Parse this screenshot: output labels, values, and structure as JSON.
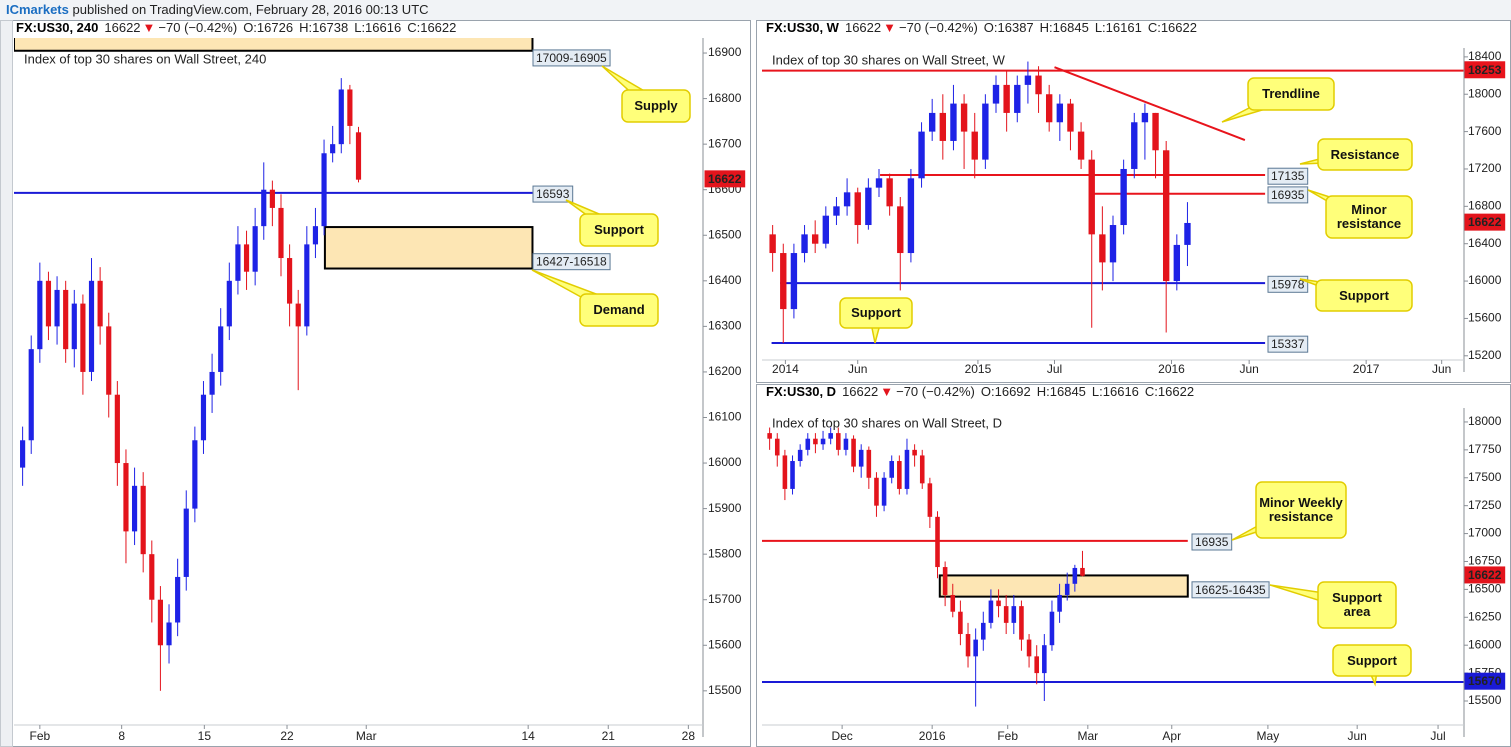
{
  "header": {
    "brand": "ICmarkets",
    "published": "published on TradingView.com, February 28, 2016 00:13 UTC"
  },
  "chart_data": [
    {
      "type": "candlestick",
      "title": "Index of top 30 shares on Wall Street, 240",
      "header": {
        "symbol": "FX:US30, 240",
        "last": 16622,
        "arrow": "▼",
        "change": "−70 (−0.42%)",
        "o": "O:16726",
        "h": "H:16738",
        "l": "L:16616",
        "c": "C:16622"
      },
      "up_color": "#1e22e6",
      "down_color": "#e3141c",
      "xlim": [
        0,
        80
      ],
      "xticks": [
        {
          "value": 3,
          "label": "Feb"
        },
        {
          "value": 12.5,
          "label": "8"
        },
        {
          "value": 22.1,
          "label": "15"
        },
        {
          "value": 31.7,
          "label": "22"
        },
        {
          "value": 40.9,
          "label": "Mar"
        },
        {
          "value": 59.7,
          "label": "14"
        },
        {
          "value": 69,
          "label": "21"
        },
        {
          "value": 78.3,
          "label": "28"
        }
      ],
      "ylim": [
        15425,
        16933
      ],
      "yticks": [
        15500,
        15600,
        15700,
        15800,
        15900,
        16000,
        16100,
        16200,
        16300,
        16400,
        16500,
        16600,
        16700,
        16800,
        16900
      ],
      "open": [
        15990,
        16050,
        16250,
        16400,
        16300,
        16380,
        16250,
        16350,
        16200,
        16400,
        16300,
        16150,
        16000,
        15850,
        15950,
        15800,
        15700,
        15600,
        15650,
        15750,
        15900,
        16050,
        16150,
        16200,
        16300,
        16400,
        16480,
        16420,
        16520,
        16600,
        16560,
        16450,
        16350,
        16300,
        16480,
        16520,
        16680,
        16700,
        16820,
        16726
      ],
      "high": [
        16080,
        16280,
        16440,
        16420,
        16410,
        16400,
        16380,
        16370,
        16450,
        16430,
        16330,
        16180,
        16030,
        15990,
        15980,
        15830,
        15730,
        15690,
        15790,
        15940,
        16080,
        16180,
        16240,
        16340,
        16440,
        16520,
        16510,
        16560,
        16660,
        16620,
        16590,
        16480,
        16380,
        16520,
        16560,
        16710,
        16740,
        16845,
        16830,
        16738
      ],
      "low": [
        15950,
        16020,
        16220,
        16270,
        16260,
        16220,
        16210,
        16150,
        16180,
        16260,
        16100,
        15950,
        15780,
        15820,
        15760,
        15650,
        15500,
        15560,
        15620,
        15720,
        15870,
        16020,
        16110,
        16170,
        16270,
        16370,
        16380,
        16390,
        16490,
        16520,
        16410,
        16300,
        16160,
        16280,
        16450,
        16500,
        16660,
        16680,
        16700,
        16616
      ],
      "close": [
        16050,
        16250,
        16400,
        16300,
        16380,
        16250,
        16350,
        16200,
        16400,
        16300,
        16150,
        16000,
        15850,
        15950,
        15800,
        15700,
        15600,
        15650,
        15750,
        15900,
        16050,
        16150,
        16200,
        16300,
        16400,
        16480,
        16420,
        16520,
        16600,
        16560,
        16450,
        16350,
        16300,
        16480,
        16520,
        16680,
        16700,
        16820,
        16740,
        16622
      ],
      "zones": [
        {
          "label": "17009-16905",
          "low": 16905,
          "high": 17009,
          "from": 0,
          "to": 60.2,
          "label_pos": "bottom-out",
          "note": "Supply"
        },
        {
          "label": "16427-16518",
          "low": 16427,
          "high": 16518,
          "from": 36.1,
          "to": 60.2,
          "label_pos": "bottom",
          "note": "Demand"
        }
      ],
      "levels": [
        {
          "value": 16593,
          "color": "#1a1ad6",
          "from": 0,
          "to": 60.2,
          "note": "Support"
        }
      ]
    },
    {
      "type": "candlestick",
      "title": "Index of top 30 shares on Wall Street, W",
      "header": {
        "symbol": "FX:US30, W",
        "last": 16622,
        "arrow": "▼",
        "change": "−70 (−0.42%)",
        "o": "O:16387",
        "h": "H:16845",
        "l": "L:16161",
        "c": "C:16622"
      },
      "up_color": "#1e22e6",
      "down_color": "#e3141c",
      "xlim": [
        0,
        66
      ],
      "xticks": [
        {
          "value": 2.2,
          "label": "2014"
        },
        {
          "value": 9,
          "label": "Jun"
        },
        {
          "value": 20.3,
          "label": "2015"
        },
        {
          "value": 27.5,
          "label": "Jul"
        },
        {
          "value": 38.5,
          "label": "2016"
        },
        {
          "value": 45.8,
          "label": "Jun"
        },
        {
          "value": 56.8,
          "label": "2017"
        },
        {
          "value": 63.9,
          "label": "Jun"
        }
      ],
      "ylim": [
        15155,
        18495
      ],
      "yticks": [
        15200,
        15600,
        16000,
        16400,
        16800,
        17200,
        17600,
        18000,
        18400
      ],
      "open": [
        16500,
        16300,
        15700,
        16300,
        16500,
        16400,
        16700,
        16800,
        16950,
        16600,
        17000,
        17100,
        16800,
        16300,
        17100,
        17600,
        17800,
        17500,
        17900,
        17600,
        17300,
        17900,
        18100,
        17800,
        18100,
        18200,
        18000,
        17700,
        17900,
        17600,
        17300,
        16500,
        16200,
        16600,
        17200,
        17700,
        17800,
        17400,
        16000,
        16387
      ],
      "high": [
        16600,
        16400,
        16400,
        16600,
        16650,
        16800,
        16900,
        17100,
        17000,
        17100,
        17200,
        17150,
        16900,
        17200,
        17700,
        17950,
        18000,
        18100,
        18000,
        17800,
        18000,
        18200,
        18250,
        18200,
        18350,
        18300,
        18100,
        18000,
        17950,
        17700,
        17400,
        16800,
        16700,
        17300,
        17800,
        17900,
        17800,
        17500,
        16500,
        16845
      ],
      "low": [
        16100,
        15337,
        15600,
        16200,
        16300,
        16350,
        16600,
        16700,
        16400,
        16550,
        16900,
        16700,
        15900,
        16200,
        17000,
        17500,
        17300,
        17400,
        17200,
        17100,
        17200,
        17800,
        17600,
        17700,
        17900,
        17800,
        17600,
        17500,
        17400,
        17200,
        15500,
        15900,
        16000,
        16500,
        17100,
        17300,
        17100,
        15450,
        15900,
        16161
      ],
      "close": [
        16300,
        15700,
        16300,
        16500,
        16400,
        16700,
        16800,
        16950,
        16600,
        17000,
        17100,
        16800,
        16300,
        17100,
        17600,
        17800,
        17500,
        17900,
        17600,
        17300,
        17900,
        18100,
        17800,
        18100,
        18200,
        18000,
        17700,
        17900,
        17600,
        17300,
        16500,
        16200,
        16600,
        17200,
        17700,
        17800,
        17400,
        16000,
        16387,
        16622
      ],
      "zones": [],
      "levels": [
        {
          "value": 18253,
          "color": "#e8141c",
          "from": 0,
          "to": 66,
          "label_at": "axis"
        },
        {
          "value": 17135,
          "color": "#e8141c",
          "from": 11.1,
          "to": 47.3,
          "note": "Resistance"
        },
        {
          "value": 16935,
          "color": "#e8141c",
          "from": 31.1,
          "to": 47.3,
          "note": "Minor resistance"
        },
        {
          "value": 15978,
          "color": "#1a1ad6",
          "from": 1.7,
          "to": 47.3,
          "note": "Support"
        },
        {
          "value": 15337,
          "color": "#1a1ad6",
          "from": 0.9,
          "to": 47.3,
          "note": "Support"
        }
      ],
      "trendlines": [
        {
          "x": [
            27.5,
            45.4
          ],
          "y": [
            18290,
            17510
          ],
          "color": "#e8141c",
          "note": "Trendline"
        }
      ]
    },
    {
      "type": "candlestick",
      "title": "Index of top 30 shares on Wall Street, D",
      "header": {
        "symbol": "FX:US30, D",
        "last": 16622,
        "arrow": "▼",
        "change": "−70 (−0.42%)",
        "o": "O:16692",
        "h": "H:16845",
        "l": "L:16616",
        "c": "C:16622"
      },
      "up_color": "#1e22e6",
      "down_color": "#e3141c",
      "xlim": [
        0,
        92
      ],
      "xticks": [
        {
          "value": 10.5,
          "label": "Dec"
        },
        {
          "value": 22.3,
          "label": "2016"
        },
        {
          "value": 32.2,
          "label": "Feb"
        },
        {
          "value": 42.7,
          "label": "Mar"
        },
        {
          "value": 53.7,
          "label": "Apr"
        },
        {
          "value": 66.3,
          "label": "May"
        },
        {
          "value": 78,
          "label": "Jun"
        },
        {
          "value": 88.6,
          "label": "Jul"
        }
      ],
      "ylim": [
        15285,
        18125
      ],
      "yticks": [
        15500,
        15750,
        16000,
        16250,
        16500,
        16750,
        17000,
        17250,
        17500,
        17750,
        18000
      ],
      "open": [
        17900,
        17850,
        17700,
        17400,
        17650,
        17750,
        17850,
        17800,
        17850,
        17900,
        17750,
        17850,
        17600,
        17750,
        17500,
        17250,
        17500,
        17650,
        17400,
        17750,
        17700,
        17450,
        17150,
        16700,
        16450,
        16300,
        16100,
        15900,
        16050,
        16200,
        16400,
        16350,
        16200,
        16350,
        16050,
        15900,
        15750,
        16000,
        16300,
        16450,
        16550,
        16692
      ],
      "high": [
        17950,
        17900,
        17750,
        17700,
        17800,
        17900,
        17900,
        17920,
        17950,
        17950,
        17900,
        17880,
        17800,
        17780,
        17550,
        17550,
        17700,
        17700,
        17850,
        17800,
        17750,
        17500,
        17200,
        16750,
        16550,
        16400,
        16200,
        16150,
        16300,
        16500,
        16500,
        16450,
        16450,
        16400,
        16100,
        16000,
        16100,
        16400,
        16550,
        16650,
        16720,
        16845
      ],
      "low": [
        17750,
        17600,
        17300,
        17350,
        17600,
        17700,
        17720,
        17750,
        17800,
        17700,
        17700,
        17550,
        17500,
        17400,
        17150,
        17200,
        17450,
        17350,
        17350,
        17600,
        17400,
        17050,
        16600,
        16350,
        16250,
        16000,
        15800,
        15450,
        15950,
        16150,
        16250,
        16100,
        16100,
        15950,
        15800,
        15650,
        15500,
        15950,
        16200,
        16400,
        16480,
        16616
      ],
      "close": [
        17850,
        17700,
        17400,
        17650,
        17750,
        17850,
        17800,
        17850,
        17900,
        17750,
        17850,
        17600,
        17750,
        17500,
        17250,
        17500,
        17650,
        17400,
        17750,
        17700,
        17450,
        17150,
        16700,
        16450,
        16300,
        16100,
        15900,
        16050,
        16200,
        16400,
        16350,
        16200,
        16350,
        16050,
        15900,
        15750,
        16000,
        16300,
        16450,
        16550,
        16692,
        16622
      ],
      "zones": [
        {
          "label": "16625-16435",
          "low": 16435,
          "high": 16625,
          "from": 23.3,
          "to": 55.8,
          "label_pos": "bottom",
          "note": "Support area"
        }
      ],
      "levels": [
        {
          "value": 16935,
          "color": "#e8141c",
          "from": 0,
          "to": 55.8,
          "note": "Minor Weekly resistance"
        },
        {
          "value": 15670,
          "color": "#1a1ad6",
          "from": 0,
          "to": 92,
          "label_at": "axis",
          "note": "Support"
        }
      ]
    }
  ]
}
